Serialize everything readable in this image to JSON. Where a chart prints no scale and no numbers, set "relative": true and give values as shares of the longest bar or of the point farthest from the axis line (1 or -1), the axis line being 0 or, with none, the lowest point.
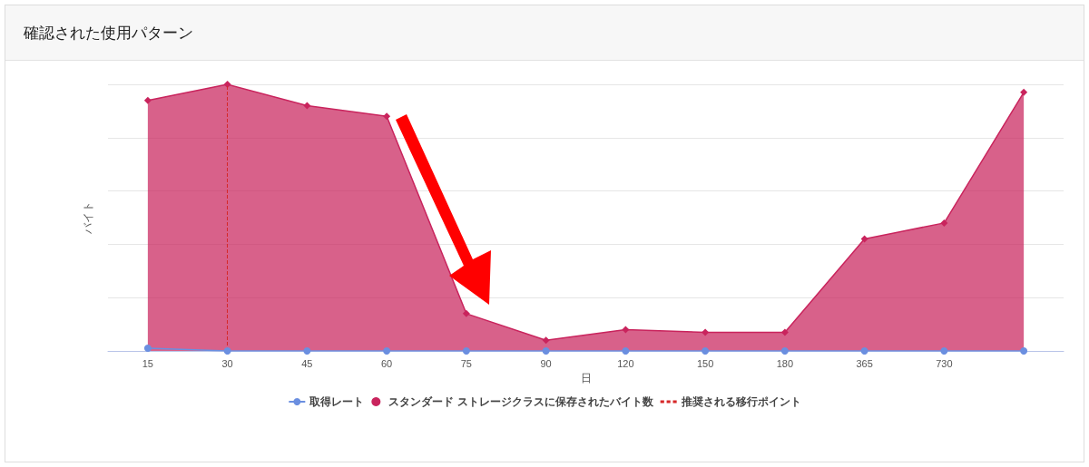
{
  "chart_data": {
    "type": "area",
    "title": "確認された使用パターン",
    "xlabel": "日",
    "ylabel": "バイト",
    "relative": true,
    "grid": "y",
    "legend": "bottom",
    "categories": [
      "15",
      "30",
      "45",
      "60",
      "75",
      "90",
      "120",
      "150",
      "180",
      "365",
      "730",
      null
    ],
    "series": [
      {
        "name": "取得レート",
        "type": "line",
        "color": "#6b8fe0",
        "marker": "circle",
        "values": [
          0.01,
          0,
          0,
          0,
          0,
          0,
          0,
          0,
          0,
          0,
          0,
          0
        ]
      },
      {
        "name": "スタンダード ストレージクラスに保存されたバイト数",
        "type": "area",
        "color": "#c9245d",
        "marker": "diamond",
        "values": [
          0.94,
          1,
          0.92,
          0.88,
          0.14,
          0.04,
          0.08,
          0.07,
          0.07,
          0.42,
          0.48,
          0.97
        ]
      }
    ],
    "ref_lines": [
      {
        "axis": "x",
        "value": "30",
        "label": "推奨される移行ポイント",
        "color": "#d62728",
        "line_style": "dashed"
      }
    ]
  }
}
